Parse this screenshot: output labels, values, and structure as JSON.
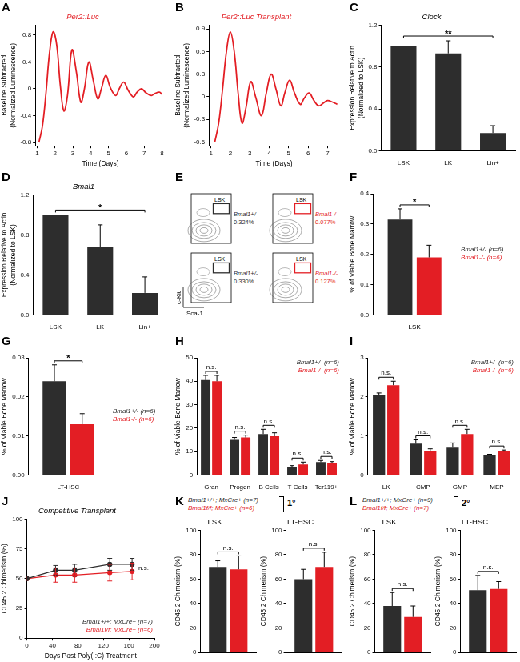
{
  "chart_data": [
    {
      "panel": "A",
      "type": "line",
      "title": "Per2::Luc",
      "xlabel": "Time (Days)",
      "ylabel": [
        "Baseline Subtracted",
        "(Normalized Luminescence)"
      ],
      "x": [
        1.1,
        1.3,
        1.5,
        1.7,
        1.9,
        2.1,
        2.3,
        2.5,
        2.7,
        2.95,
        3.2,
        3.45,
        3.65,
        3.9,
        4.15,
        4.4,
        4.6,
        4.85,
        5.1,
        5.4,
        5.6,
        5.85,
        6.1,
        6.4,
        6.6,
        6.85,
        7.1,
        7.4,
        7.6,
        7.85,
        8.0
      ],
      "values": [
        -0.8,
        -0.55,
        -0.05,
        0.55,
        0.85,
        0.65,
        0.05,
        -0.33,
        -0.1,
        0.58,
        0.25,
        -0.2,
        0.0,
        0.4,
        0.12,
        -0.15,
        0.0,
        0.2,
        0.02,
        -0.1,
        0.0,
        0.1,
        -0.02,
        -0.12,
        -0.05,
        0.0,
        -0.06,
        -0.1,
        -0.07,
        -0.05,
        -0.08
      ],
      "color": "#e31e24",
      "xlim": [
        0.9,
        8.2
      ],
      "xticks": [
        1,
        2,
        3,
        4,
        5,
        6,
        7,
        8
      ],
      "ylim": [
        -0.85,
        0.95
      ],
      "yticks": [
        -0.8,
        -0.4,
        0,
        0.4,
        0.8
      ],
      "grid": false
    },
    {
      "panel": "B",
      "type": "line",
      "title": "Per2::Luc Transplant",
      "xlabel": "Time (Days)",
      "ylabel": [
        "Baseline Subtracted",
        "(Normalized Luminescence)"
      ],
      "x": [
        1.2,
        1.4,
        1.6,
        1.8,
        2.0,
        2.2,
        2.4,
        2.6,
        2.8,
        3.05,
        3.3,
        3.6,
        3.85,
        4.1,
        4.35,
        4.6,
        4.8,
        5.05,
        5.3,
        5.6,
        5.8,
        6.05,
        6.3,
        6.55,
        6.8,
        7.0,
        7.25,
        7.5
      ],
      "values": [
        -0.6,
        -0.35,
        0.1,
        0.6,
        0.86,
        0.6,
        0.05,
        -0.35,
        -0.15,
        0.2,
        0.0,
        -0.25,
        0.05,
        0.3,
        0.1,
        -0.12,
        0.05,
        0.22,
        0.05,
        -0.1,
        -0.02,
        0.05,
        -0.05,
        -0.12,
        -0.08,
        -0.05,
        -0.07,
        -0.1
      ],
      "color": "#e31e24",
      "xlim": [
        0.9,
        7.6
      ],
      "xticks": [
        1,
        2,
        3,
        4,
        5,
        6,
        7
      ],
      "ylim": [
        -0.65,
        0.95
      ],
      "yticks": [
        -0.6,
        -0.3,
        0,
        0.3,
        0.6,
        0.9
      ],
      "grid": false
    },
    {
      "panel": "C",
      "type": "bar",
      "title": "Clock",
      "ylabel": [
        "Expression Relative to Actin",
        "(Normalized to LSK)"
      ],
      "categories": [
        "LSK",
        "LK",
        "Lin+"
      ],
      "values": [
        1.0,
        0.93,
        0.17
      ],
      "errors": [
        0,
        0.12,
        0.07
      ],
      "color": "#2d2d2d",
      "ylim": [
        0,
        1.2
      ],
      "yticks": [
        {
          "value": 0,
          "label": "0.0"
        },
        0.4,
        0.8,
        1.2
      ],
      "grid": false,
      "annotations": [
        {
          "text": "**",
          "from": "LSK",
          "to": "Lin+"
        }
      ]
    },
    {
      "panel": "D",
      "type": "bar",
      "title": "Bmal1",
      "ylabel": [
        "Expression Relative to Actin",
        "(Normalized to LSK)"
      ],
      "categories": [
        "LSK",
        "LK",
        "Lin+"
      ],
      "values": [
        1.0,
        0.68,
        0.22
      ],
      "errors": [
        0,
        0.22,
        0.16
      ],
      "color": "#2d2d2d",
      "ylim": [
        0,
        1.2
      ],
      "yticks": [
        {
          "value": 0,
          "label": "0.0"
        },
        0.4,
        0.8,
        1.2
      ],
      "grid": false,
      "annotations": [
        {
          "text": "*",
          "from": "LSK",
          "to": "Lin+"
        }
      ]
    },
    {
      "panel": "E",
      "type": "flow",
      "xlabel": "Sca-1",
      "ylabel": "c-Kit",
      "plots": [
        {
          "gate": "LSK",
          "genotype": "Bmal1+/-",
          "percent": "0.324%",
          "color": "#2d2d2d"
        },
        {
          "gate": "LSK",
          "genotype": "Bmal1-/-",
          "percent": "0.077%",
          "color": "#e31e24"
        },
        {
          "gate": "LSK",
          "genotype": "Bmal1+/-",
          "percent": "0.330%",
          "color": "#2d2d2d"
        },
        {
          "gate": "LSK",
          "genotype": "Bmal1-/-",
          "percent": "0.127%",
          "color": "#e31e24"
        }
      ]
    },
    {
      "panel": "F",
      "type": "bar",
      "ylabel": "% of Viable Bone Marrow",
      "categories": [
        "LSK"
      ],
      "series": [
        {
          "name": "Bmal1+/- (n=6)",
          "color": "#2d2d2d",
          "values": [
            0.315
          ],
          "errors": [
            0.035
          ]
        },
        {
          "name": "Bmal1-/- (n=6)",
          "color": "#e31e24",
          "values": [
            0.19
          ],
          "errors": [
            0.04
          ]
        }
      ],
      "ylim": [
        0,
        0.4
      ],
      "yticks": [
        {
          "value": 0,
          "label": "0.0"
        },
        0.1,
        0.2,
        0.3,
        0.4
      ],
      "grid": false,
      "legend": "right",
      "annotations": [
        {
          "text": "*",
          "category": "LSK"
        }
      ]
    },
    {
      "panel": "G",
      "type": "bar",
      "ylabel": "% of Viable Bone Marrow",
      "categories": [
        "LT-HSC"
      ],
      "series": [
        {
          "name": "Bmal1+/- (n=6)",
          "color": "#2d2d2d",
          "values": [
            0.024
          ],
          "errors": [
            0.0042
          ]
        },
        {
          "name": "Bmal1-/- (n=6)",
          "color": "#e31e24",
          "values": [
            0.013
          ],
          "errors": [
            0.0027
          ]
        }
      ],
      "ylim": [
        0,
        0.03
      ],
      "yticks": [
        {
          "value": 0,
          "label": "0.00"
        },
        0.01,
        0.02,
        0.03
      ],
      "grid": false,
      "legend": "right",
      "annotations": [
        {
          "text": "*",
          "category": "LT-HSC"
        }
      ]
    },
    {
      "panel": "H",
      "type": "bar",
      "ylabel": "% of Viable Bone Marrow",
      "categories": [
        "Gran",
        "Progen",
        "B Cells",
        "T Cells",
        "Ter119+"
      ],
      "series": [
        {
          "name": "Bmal1+/- (n=6)",
          "color": "#2d2d2d",
          "values": [
            40.5,
            15,
            17.5,
            3.5,
            5.5
          ],
          "errors": [
            2,
            1,
            2,
            0.5,
            0.7
          ]
        },
        {
          "name": "Bmal1-/- (n=6)",
          "color": "#e31e24",
          "values": [
            40,
            16,
            16.5,
            4.5,
            5
          ],
          "errors": [
            2.5,
            1,
            1.5,
            1,
            0.7
          ]
        }
      ],
      "ylim": [
        0,
        50
      ],
      "yticks": [
        0,
        10,
        20,
        30,
        40,
        50
      ],
      "grid": false,
      "legend": "upper right",
      "annotations": [
        {
          "text": "n.s.",
          "category": "Gran"
        },
        {
          "text": "n.s.",
          "category": "Progen"
        },
        {
          "text": "n.s.",
          "category": "B Cells"
        },
        {
          "text": "n.s.",
          "category": "T Cells"
        },
        {
          "text": "n.s.",
          "category": "Ter119+"
        }
      ]
    },
    {
      "panel": "I",
      "type": "bar",
      "ylabel": "% of Viable Bone Marrow",
      "categories": [
        "LK",
        "CMP",
        "GMP",
        "MEP"
      ],
      "series": [
        {
          "name": "Bmal1+/- (n=6)",
          "color": "#2d2d2d",
          "values": [
            2.05,
            0.8,
            0.7,
            0.5
          ],
          "errors": [
            0.05,
            0.1,
            0.12,
            0.03
          ]
        },
        {
          "name": "Bmal1-/- (n=6)",
          "color": "#e31e24",
          "values": [
            2.3,
            0.6,
            1.05,
            0.6
          ],
          "errors": [
            0.1,
            0.07,
            0.12,
            0.04
          ]
        }
      ],
      "ylim": [
        0,
        3
      ],
      "yticks": [
        0,
        1,
        2,
        3
      ],
      "grid": false,
      "legend": "upper right",
      "annotations": [
        {
          "text": "n.s.",
          "category": "LK"
        },
        {
          "text": "n.s.",
          "category": "CMP"
        },
        {
          "text": "n.s.",
          "category": "GMP"
        },
        {
          "text": "n.s.",
          "category": "MEP"
        }
      ]
    },
    {
      "panel": "J",
      "type": "line",
      "title": "Competitive Transplant",
      "xlabel": "Days Post Poly(I:C) Treatment",
      "ylabel": "CD45.2 Chimerism (%)",
      "x": [
        0,
        45,
        75,
        130,
        165
      ],
      "series": [
        {
          "name": "Bmal1+/+; MxCre+ (n=7)",
          "color": "#2d2d2d",
          "values": [
            50,
            57,
            57,
            62,
            62
          ],
          "errors": [
            0,
            4,
            5,
            5,
            5
          ],
          "marker": "circle"
        },
        {
          "name": "Bmal1f/f; MxCre+ (n=6)",
          "color": "#e31e24",
          "values": [
            50,
            53,
            53,
            55,
            56
          ],
          "errors": [
            0,
            6,
            6,
            7,
            7
          ],
          "marker": "circle"
        }
      ],
      "xlim": [
        0,
        200
      ],
      "xticks": [
        0,
        40,
        80,
        120,
        160,
        200
      ],
      "ylim": [
        0,
        100
      ],
      "yticks": [
        0,
        25,
        50,
        75,
        100
      ],
      "grid": false,
      "legend": "lower right",
      "annotations": [
        {
          "text": "n.s."
        }
      ]
    },
    {
      "panel": "K",
      "type": "bar",
      "label": "1°",
      "ylabel": "CD45.2 Chimerism (%)",
      "series": [
        {
          "name": "Bmal1+/+; MxCre+ (n=7)",
          "color": "#2d2d2d"
        },
        {
          "name": "Bmal1f/f; MxCre+ (n=6)",
          "color": "#e31e24"
        }
      ],
      "subplots": [
        {
          "category": "LSK",
          "values": [
            70,
            68
          ],
          "errors": [
            5,
            11
          ],
          "annotation": "n.s."
        },
        {
          "category": "LT-HSC",
          "values": [
            60,
            70
          ],
          "errors": [
            8,
            12
          ],
          "annotation": "n.s."
        }
      ],
      "ylim": [
        0,
        100
      ],
      "yticks": [
        0,
        20,
        40,
        60,
        80,
        100
      ],
      "grid": false,
      "legend": "top"
    },
    {
      "panel": "L",
      "type": "bar",
      "label": "2°",
      "ylabel": "CD45.2 Chimerism (%)",
      "series": [
        {
          "name": "Bmal1+/+; MxCre+ (n=9)",
          "color": "#2d2d2d"
        },
        {
          "name": "Bmal1f/f; MxCre+ (n=7)",
          "color": "#e31e24"
        }
      ],
      "subplots": [
        {
          "category": "LSK",
          "values": [
            38,
            29
          ],
          "errors": [
            11,
            9
          ],
          "annotation": "n.s."
        },
        {
          "category": "LT-HSC",
          "values": [
            51,
            52
          ],
          "errors": [
            12,
            6
          ],
          "annotation": "n.s."
        }
      ],
      "ylim": [
        0,
        100
      ],
      "yticks": [
        0,
        20,
        40,
        60,
        80,
        100
      ],
      "grid": false,
      "legend": "top"
    }
  ]
}
